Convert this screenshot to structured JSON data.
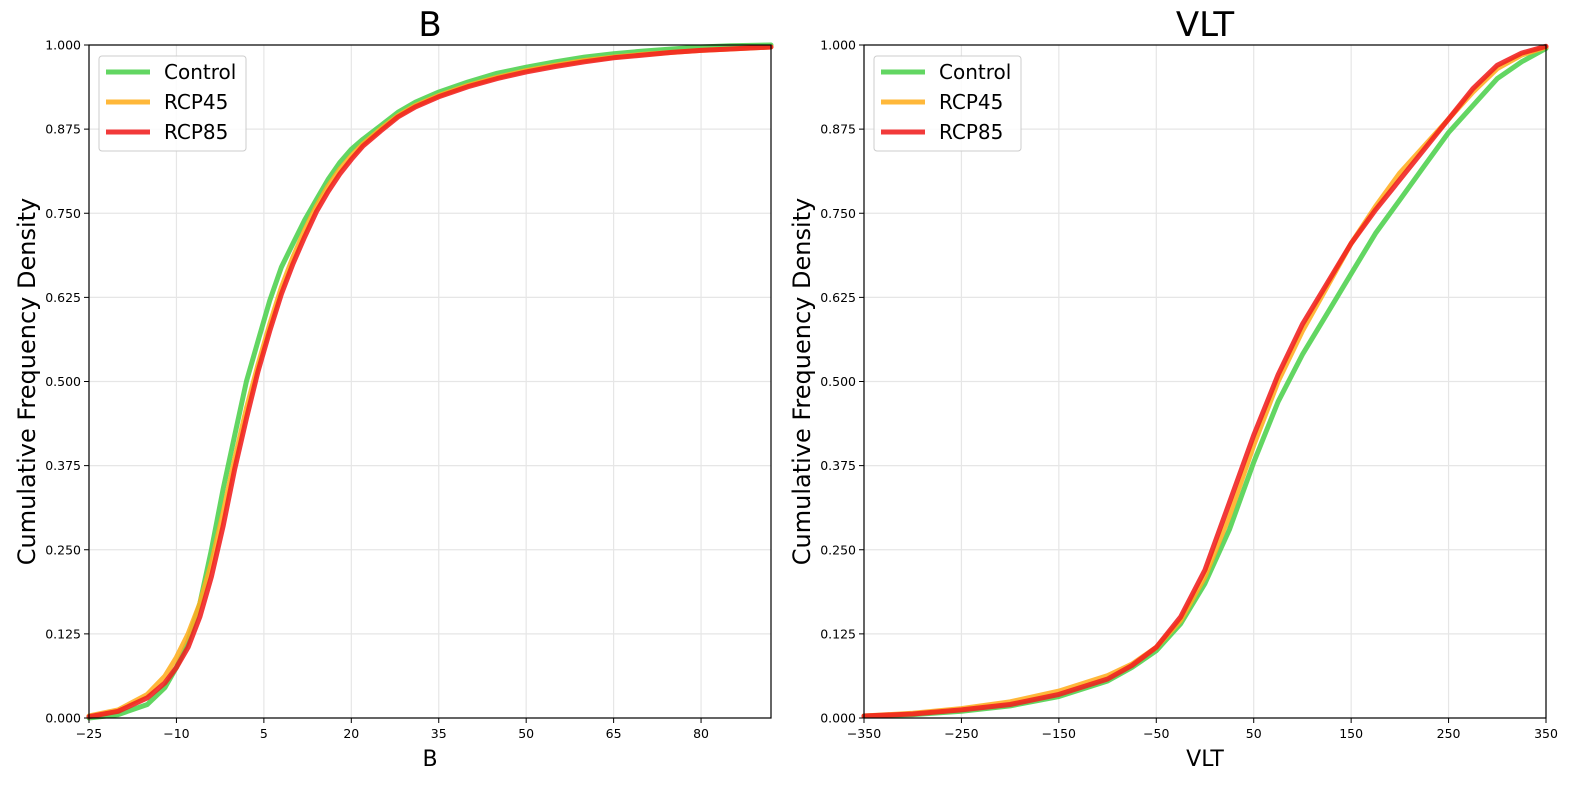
{
  "chart_data": [
    {
      "type": "line",
      "title": "B",
      "xlabel": "B",
      "ylabel": "Cumulative Frequency Density",
      "xlim": [
        -25,
        92
      ],
      "ylim": [
        0,
        1
      ],
      "xticks": [
        -25,
        -10,
        5,
        20,
        35,
        50,
        65,
        80
      ],
      "yticks": [
        0,
        0.125,
        0.25,
        0.375,
        0.5,
        0.625,
        0.75,
        0.875,
        1.0
      ],
      "ytick_labels": [
        "0.000",
        "0.125",
        "0.250",
        "0.375",
        "0.500",
        "0.625",
        "0.750",
        "0.875",
        "1.000"
      ],
      "xtick_labels": [
        "−25",
        "−10",
        "5",
        "20",
        "35",
        "50",
        "65",
        "80"
      ],
      "grid": true,
      "legend_position": "top-left",
      "series": [
        {
          "name": "Control",
          "color": "#4cd04c",
          "x": [
            -25,
            -20,
            -15,
            -12,
            -10,
            -8,
            -6,
            -4,
            -2,
            0,
            2,
            4,
            6,
            8,
            10,
            12,
            14,
            16,
            18,
            20,
            22,
            25,
            28,
            31,
            35,
            40,
            45,
            50,
            55,
            60,
            65,
            70,
            75,
            80,
            85,
            92
          ],
          "y": [
            0.0,
            0.005,
            0.02,
            0.045,
            0.075,
            0.115,
            0.17,
            0.25,
            0.34,
            0.42,
            0.5,
            0.56,
            0.62,
            0.67,
            0.705,
            0.74,
            0.77,
            0.8,
            0.825,
            0.845,
            0.86,
            0.88,
            0.9,
            0.915,
            0.93,
            0.945,
            0.958,
            0.967,
            0.975,
            0.982,
            0.987,
            0.991,
            0.994,
            0.997,
            0.999,
            1.0
          ]
        },
        {
          "name": "RCP45",
          "color": "#ffae1f",
          "x": [
            -25,
            -20,
            -15,
            -12,
            -10,
            -8,
            -6,
            -4,
            -2,
            0,
            2,
            4,
            6,
            8,
            10,
            12,
            14,
            16,
            18,
            20,
            22,
            25,
            28,
            31,
            35,
            40,
            45,
            50,
            55,
            60,
            65,
            70,
            75,
            80,
            85,
            92
          ],
          "y": [
            0.003,
            0.012,
            0.035,
            0.062,
            0.09,
            0.125,
            0.17,
            0.23,
            0.305,
            0.385,
            0.46,
            0.525,
            0.585,
            0.64,
            0.685,
            0.725,
            0.76,
            0.79,
            0.815,
            0.835,
            0.853,
            0.875,
            0.895,
            0.91,
            0.925,
            0.94,
            0.952,
            0.962,
            0.97,
            0.977,
            0.982,
            0.986,
            0.989,
            0.992,
            0.994,
            0.997
          ]
        },
        {
          "name": "RCP85",
          "color": "#f01f1f",
          "x": [
            -25,
            -20,
            -15,
            -12,
            -10,
            -8,
            -6,
            -4,
            -2,
            0,
            2,
            4,
            6,
            8,
            10,
            12,
            14,
            16,
            18,
            20,
            22,
            25,
            28,
            31,
            35,
            40,
            45,
            50,
            55,
            60,
            65,
            70,
            75,
            80,
            85,
            92
          ],
          "y": [
            0.002,
            0.01,
            0.03,
            0.052,
            0.075,
            0.105,
            0.15,
            0.21,
            0.285,
            0.37,
            0.445,
            0.515,
            0.575,
            0.63,
            0.675,
            0.715,
            0.752,
            0.782,
            0.808,
            0.83,
            0.85,
            0.872,
            0.893,
            0.908,
            0.923,
            0.938,
            0.95,
            0.96,
            0.968,
            0.975,
            0.981,
            0.985,
            0.989,
            0.992,
            0.994,
            0.997
          ]
        }
      ]
    },
    {
      "type": "line",
      "title": "VLT",
      "xlabel": "VLT",
      "ylabel": "Cumulative Frequency Density",
      "xlim": [
        -350,
        350
      ],
      "ylim": [
        0,
        1
      ],
      "xticks": [
        -350,
        -250,
        -150,
        -50,
        50,
        150,
        250,
        350
      ],
      "yticks": [
        0,
        0.125,
        0.25,
        0.375,
        0.5,
        0.625,
        0.75,
        0.875,
        1.0
      ],
      "ytick_labels": [
        "0.000",
        "0.125",
        "0.250",
        "0.375",
        "0.500",
        "0.625",
        "0.750",
        "0.875",
        "1.000"
      ],
      "xtick_labels": [
        "−350",
        "−250",
        "−150",
        "−50",
        "50",
        "150",
        "250",
        "350"
      ],
      "grid": true,
      "legend_position": "top-left",
      "series": [
        {
          "name": "Control",
          "color": "#4cd04c",
          "x": [
            -350,
            -300,
            -250,
            -200,
            -150,
            -100,
            -75,
            -50,
            -25,
            0,
            25,
            50,
            75,
            100,
            125,
            150,
            175,
            200,
            225,
            250,
            275,
            300,
            325,
            350
          ],
          "y": [
            0.003,
            0.005,
            0.01,
            0.018,
            0.032,
            0.055,
            0.075,
            0.1,
            0.14,
            0.2,
            0.28,
            0.38,
            0.47,
            0.54,
            0.6,
            0.66,
            0.72,
            0.77,
            0.82,
            0.87,
            0.91,
            0.95,
            0.975,
            0.995
          ]
        },
        {
          "name": "RCP45",
          "color": "#ffae1f",
          "x": [
            -350,
            -300,
            -250,
            -200,
            -150,
            -100,
            -75,
            -50,
            -25,
            0,
            25,
            50,
            75,
            100,
            125,
            150,
            175,
            200,
            225,
            250,
            275,
            300,
            325,
            350
          ],
          "y": [
            0.003,
            0.007,
            0.014,
            0.024,
            0.04,
            0.063,
            0.08,
            0.105,
            0.145,
            0.21,
            0.3,
            0.405,
            0.5,
            0.575,
            0.64,
            0.705,
            0.76,
            0.81,
            0.85,
            0.89,
            0.93,
            0.965,
            0.985,
            0.997
          ]
        },
        {
          "name": "RCP85",
          "color": "#f01f1f",
          "x": [
            -350,
            -300,
            -250,
            -200,
            -150,
            -100,
            -75,
            -50,
            -25,
            0,
            25,
            50,
            75,
            100,
            125,
            150,
            175,
            200,
            225,
            250,
            275,
            300,
            325,
            350
          ],
          "y": [
            0.003,
            0.006,
            0.012,
            0.02,
            0.035,
            0.058,
            0.078,
            0.105,
            0.15,
            0.22,
            0.32,
            0.42,
            0.51,
            0.585,
            0.645,
            0.705,
            0.755,
            0.8,
            0.845,
            0.89,
            0.935,
            0.97,
            0.988,
            0.998
          ]
        }
      ]
    }
  ]
}
